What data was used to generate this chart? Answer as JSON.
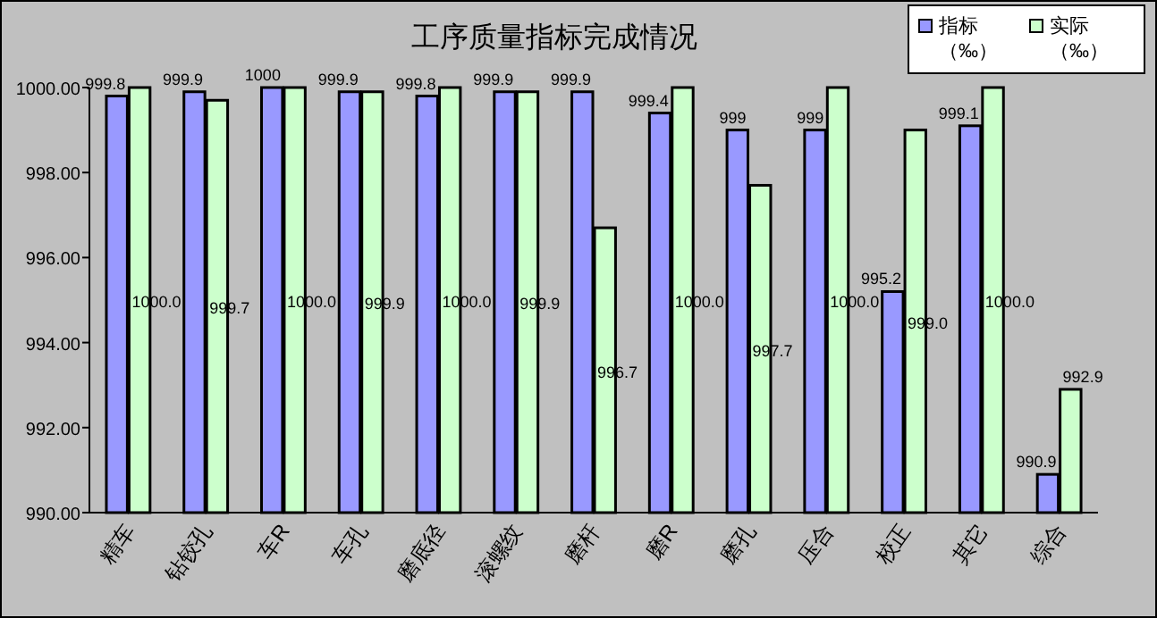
{
  "chart_data": {
    "type": "bar",
    "title": "工序质量指标完成情况",
    "categories": [
      "精车",
      "钻铰孔",
      "车R",
      "车孔",
      "磨底径",
      "滚螺纹",
      "磨杆",
      "磨R",
      "磨孔",
      "压合",
      "校正",
      "其它",
      "综合"
    ],
    "series": [
      {
        "name": "指标（‰）",
        "color": "#9999ff",
        "values": [
          999.8,
          999.9,
          1000,
          999.9,
          999.8,
          999.9,
          999.9,
          999.4,
          999,
          999,
          995.2,
          999.1,
          990.9
        ],
        "value_labels": [
          "999.8",
          "999.9",
          "1000",
          "999.9",
          "999.8",
          "999.9",
          "999.9",
          "999.4",
          "999",
          "999",
          "995.2",
          "999.1",
          "990.9"
        ]
      },
      {
        "name": "实际（‰）",
        "color": "#ccffcc",
        "values": [
          1000.0,
          999.7,
          1000.0,
          999.9,
          1000.0,
          999.9,
          996.7,
          1000.0,
          997.7,
          1000.0,
          999.0,
          1000.0,
          992.9
        ],
        "value_labels": [
          "1000.0",
          "999.7",
          "1000.0",
          "999.9",
          "1000.0",
          "999.9",
          "996.7",
          "1000.0",
          "997.7",
          "1000.0",
          "999.0",
          "1000.0",
          "992.9"
        ]
      }
    ],
    "ylim": [
      990,
      1000
    ],
    "yticks": [
      {
        "value": 990,
        "label": "990.00"
      },
      {
        "value": 992,
        "label": "992.00"
      },
      {
        "value": 994,
        "label": "994.00"
      },
      {
        "value": 996,
        "label": "996.00"
      },
      {
        "value": 998,
        "label": "998.00"
      },
      {
        "value": 1000,
        "label": "1000.00"
      }
    ],
    "legend": "top right",
    "grid": false
  }
}
